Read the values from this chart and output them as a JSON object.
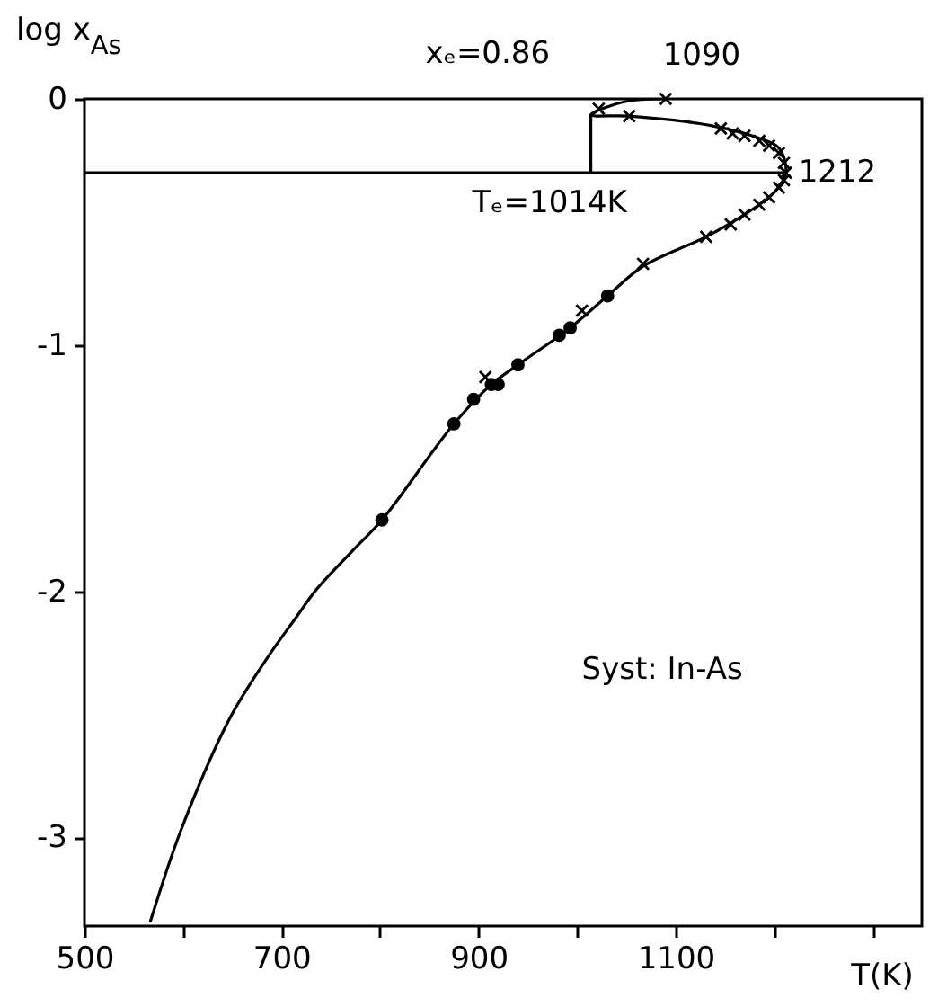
{
  "chart_data": {
    "type": "line",
    "xlabel": "T(K)",
    "ylabel": "log x$_{As}$",
    "xlim": [
      500,
      1350
    ],
    "ylim": [
      -3.36,
      0
    ],
    "xticks": [
      500,
      {
        "value": 600,
        "label": null
      },
      700,
      {
        "value": 800,
        "label": null
      },
      900,
      {
        "value": 1000,
        "label": null
      },
      1100,
      {
        "value": 1200,
        "label": null
      },
      {
        "value": 1300,
        "label": null
      }
    ],
    "yticks": [
      0,
      -1,
      -2,
      -3
    ],
    "grid": false,
    "series": [
      {
        "color": "#000000",
        "marker": "none",
        "x": [
          567,
          598,
          647,
          684,
          716,
          734,
          771,
          802,
          875,
          913,
          940,
          993,
          1031,
          1067,
          1131,
          1170,
          1200,
          1212,
          1205,
          1185,
          1138,
          1053,
          1014,
          1050,
          1090
        ],
        "values": [
          -3.34,
          -2.97,
          -2.52,
          -2.28,
          -2.1,
          -2.0,
          -1.84,
          -1.71,
          -1.32,
          -1.16,
          -1.08,
          -0.93,
          -0.8,
          -0.68,
          -0.56,
          -0.47,
          -0.38,
          -0.3,
          -0.2,
          -0.16,
          -0.11,
          -0.07,
          -0.065,
          -0.01,
          0
        ]
      },
      {
        "color": "#000000",
        "marker": "none",
        "x": [
          500,
          1212,
          null,
          1014,
          1014
        ],
        "values": [
          -0.3,
          -0.3,
          null,
          -0.3,
          -0.065
        ]
      },
      {
        "type": "scatter",
        "color": "#000000",
        "marker": "circle",
        "x": [
          875,
          895,
          913,
          940
        ],
        "values": [
          -1.32,
          -1.22,
          -1.16,
          -1.08
        ]
      },
      {
        "type": "scatter",
        "color": "#000000",
        "marker": "circle",
        "x": [
          802,
          920,
          982,
          993,
          1031
        ],
        "values": [
          -1.71,
          -1.16,
          -0.96,
          -0.93,
          -0.8
        ]
      },
      {
        "type": "scatter",
        "color": "#000000",
        "marker": "cross",
        "x": [
          907,
          1005,
          1067,
          1131,
          1156,
          1170,
          1185,
          1195,
          1205,
          1210,
          1212,
          1210,
          1205,
          1195,
          1185,
          1170,
          1158,
          1146,
          1053,
          1022,
          1090
        ],
        "values": [
          -1.13,
          -0.86,
          -0.67,
          -0.56,
          -0.51,
          -0.47,
          -0.43,
          -0.4,
          -0.36,
          -0.33,
          -0.3,
          -0.26,
          -0.22,
          -0.19,
          -0.17,
          -0.15,
          -0.14,
          -0.12,
          -0.07,
          -0.04,
          0
        ]
      }
    ],
    "annotations": [
      {
        "text": "xₑ=0.86",
        "x": 1014,
        "y": -0.065
      },
      {
        "text": "1090",
        "x": 1090,
        "y": 0
      },
      {
        "text": "1212",
        "x": 1212,
        "y": -0.3
      },
      {
        "text": "Tₑ=1014K",
        "x": 1014,
        "y": -0.3
      },
      "Syst: In-As"
    ]
  }
}
